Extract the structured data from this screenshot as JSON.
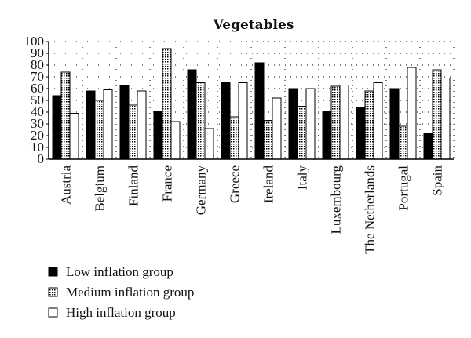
{
  "chart_data": {
    "type": "bar",
    "title": "Vegetables",
    "xlabel": "",
    "ylabel": "",
    "ylim": [
      0,
      100
    ],
    "yticks": [
      0,
      10,
      20,
      30,
      40,
      50,
      60,
      70,
      80,
      90,
      100
    ],
    "grid": "dotted",
    "legend_position": "bottom-left",
    "categories": [
      "Austria",
      "Belgium",
      "Finland",
      "France",
      "Germany",
      "Greece",
      "Ireland",
      "Italy",
      "Luxembourg",
      "The Netherlands",
      "Portugal",
      "Spain"
    ],
    "series": [
      {
        "name": "Low inflation group",
        "fill": "solid-black",
        "values": [
          54,
          58,
          63,
          41,
          76,
          65,
          82,
          60,
          41,
          44,
          60,
          22
        ]
      },
      {
        "name": "Medium inflation group",
        "fill": "dotted",
        "values": [
          74,
          50,
          46,
          94,
          65,
          36,
          33,
          45,
          62,
          58,
          28,
          76
        ]
      },
      {
        "name": "High inflation group",
        "fill": "white",
        "values": [
          39,
          59,
          58,
          32,
          26,
          65,
          52,
          60,
          63,
          65,
          78,
          69
        ]
      }
    ]
  }
}
